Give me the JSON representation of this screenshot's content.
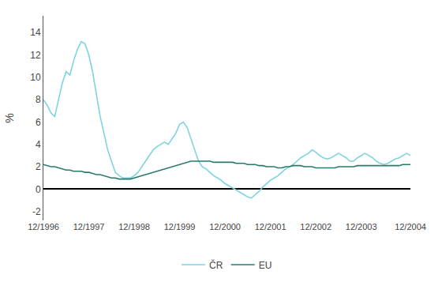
{
  "chart_data": {
    "type": "line",
    "ylabel": "%",
    "categories": [
      "12/1996",
      null,
      null,
      null,
      null,
      null,
      null,
      null,
      null,
      null,
      null,
      null,
      "12/1997",
      null,
      null,
      null,
      null,
      null,
      null,
      null,
      null,
      null,
      null,
      null,
      "12/1998",
      null,
      null,
      null,
      null,
      null,
      null,
      null,
      null,
      null,
      null,
      null,
      "12/1999",
      null,
      null,
      null,
      null,
      null,
      null,
      null,
      null,
      null,
      null,
      null,
      "12/2000",
      null,
      null,
      null,
      null,
      null,
      null,
      null,
      null,
      null,
      null,
      null,
      "12/2001",
      null,
      null,
      null,
      null,
      null,
      null,
      null,
      null,
      null,
      null,
      null,
      "12/2002",
      null,
      null,
      null,
      null,
      null,
      null,
      null,
      null,
      null,
      null,
      null,
      "12/2003",
      null,
      null,
      null,
      null,
      null,
      null,
      null,
      null,
      null,
      null,
      null,
      null,
      "12/2004"
    ],
    "series": [
      {
        "name": "ČR",
        "color": "#7dd4df",
        "values": [
          8.0,
          7.5,
          6.8,
          6.5,
          8.0,
          9.5,
          10.5,
          10.2,
          11.5,
          12.5,
          13.2,
          13.0,
          12.0,
          10.5,
          8.5,
          6.5,
          5.0,
          3.5,
          2.5,
          1.5,
          1.2,
          1.0,
          1.0,
          1.0,
          1.2,
          1.5,
          2.0,
          2.5,
          3.0,
          3.5,
          3.8,
          4.0,
          4.2,
          4.0,
          4.5,
          5.0,
          5.8,
          6.0,
          5.5,
          4.5,
          3.5,
          2.5,
          2.0,
          1.8,
          1.5,
          1.2,
          1.0,
          0.8,
          0.5,
          0.3,
          0.1,
          -0.1,
          -0.3,
          -0.5,
          -0.7,
          -0.8,
          -0.5,
          -0.2,
          0.2,
          0.5,
          0.8,
          1.0,
          1.2,
          1.5,
          1.8,
          2.0,
          2.2,
          2.5,
          2.8,
          3.0,
          3.2,
          3.5,
          3.3,
          3.0,
          2.8,
          2.7,
          2.8,
          3.0,
          3.2,
          3.0,
          2.8,
          2.5,
          2.5,
          2.8,
          3.0,
          3.2,
          3.0,
          2.8,
          2.5,
          2.3,
          2.2,
          2.3,
          2.5,
          2.7,
          2.8,
          3.0,
          3.2,
          3.0
        ]
      },
      {
        "name": "EU",
        "color": "#2a7a6a",
        "values": [
          2.2,
          2.1,
          2.0,
          2.0,
          1.9,
          1.8,
          1.7,
          1.7,
          1.6,
          1.6,
          1.6,
          1.5,
          1.5,
          1.4,
          1.3,
          1.3,
          1.2,
          1.1,
          1.0,
          1.0,
          0.9,
          0.9,
          0.9,
          0.9,
          1.0,
          1.1,
          1.2,
          1.3,
          1.4,
          1.5,
          1.6,
          1.7,
          1.8,
          1.9,
          2.0,
          2.1,
          2.2,
          2.3,
          2.4,
          2.5,
          2.5,
          2.5,
          2.5,
          2.5,
          2.5,
          2.4,
          2.4,
          2.4,
          2.4,
          2.4,
          2.4,
          2.3,
          2.3,
          2.3,
          2.2,
          2.2,
          2.2,
          2.1,
          2.1,
          2.0,
          2.0,
          2.0,
          1.9,
          1.9,
          2.0,
          2.0,
          2.1,
          2.1,
          2.1,
          2.0,
          2.0,
          2.0,
          1.9,
          1.9,
          1.9,
          1.9,
          1.9,
          1.9,
          2.0,
          2.0,
          2.0,
          2.0,
          2.0,
          2.1,
          2.1,
          2.1,
          2.1,
          2.1,
          2.1,
          2.1,
          2.1,
          2.1,
          2.1,
          2.1,
          2.1,
          2.2,
          2.2,
          2.2
        ]
      }
    ],
    "ylim": [
      -2.8,
      15.5
    ],
    "yticks": [
      -2,
      0,
      2,
      4,
      6,
      8,
      10,
      12,
      14
    ],
    "grid": false,
    "legend": "bottom"
  }
}
